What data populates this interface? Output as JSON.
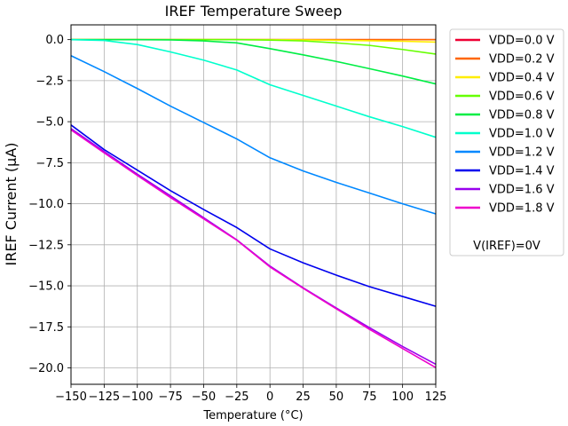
{
  "chart_data": {
    "type": "line",
    "title": "IREF Temperature Sweep",
    "xlabel": "Temperature (°C)",
    "ylabel": "IREF Current (µA)",
    "xlim": [
      -150,
      125
    ],
    "ylim": [
      -21,
      0.9
    ],
    "grid": true,
    "legend_position": "outside-upper-right",
    "legend_note": "V(IREF)=0V",
    "x_ticks": [
      -150,
      -125,
      -100,
      -75,
      -50,
      -25,
      0,
      25,
      50,
      75,
      100,
      125
    ],
    "x_tick_labels": [
      "−150",
      "−125",
      "−100",
      "−75",
      "−50",
      "−25",
      "0",
      "25",
      "50",
      "75",
      "100",
      "125"
    ],
    "y_ticks": [
      0,
      -2.5,
      -5,
      -7.5,
      -10,
      -12.5,
      -15,
      -17.5,
      -20
    ],
    "y_tick_labels": [
      "0.0",
      "−2.5",
      "−5.0",
      "−7.5",
      "−10.0",
      "−12.5",
      "−15.0",
      "−17.5",
      "−20.0"
    ],
    "x": [
      -150,
      -125,
      -100,
      -75,
      -50,
      -25,
      0,
      25,
      50,
      75,
      100,
      125
    ],
    "series": [
      {
        "name": "VDD=0.0 V",
        "color": "#ee0033",
        "values": [
          0,
          0,
          0,
          0,
          0,
          0,
          0,
          0,
          0,
          0,
          0,
          0
        ]
      },
      {
        "name": "VDD=0.2 V",
        "color": "#ff6600",
        "values": [
          0,
          0,
          0,
          0,
          0,
          0,
          0,
          0,
          0,
          0,
          0,
          0
        ]
      },
      {
        "name": "VDD=0.4 V",
        "color": "#ffee00",
        "values": [
          0,
          0,
          0,
          0,
          0,
          0,
          0,
          -0.02,
          -0.04,
          -0.07,
          -0.1,
          -0.15
        ]
      },
      {
        "name": "VDD=0.6 V",
        "color": "#66ff00",
        "values": [
          0,
          0,
          0,
          0,
          0,
          0,
          -0.03,
          -0.08,
          -0.2,
          -0.35,
          -0.6,
          -0.88
        ]
      },
      {
        "name": "VDD=0.8 V",
        "color": "#00ee44",
        "values": [
          0,
          0,
          0,
          -0.02,
          -0.08,
          -0.2,
          -0.55,
          -0.93,
          -1.33,
          -1.77,
          -2.22,
          -2.7
        ]
      },
      {
        "name": "VDD=1.0 V",
        "color": "#00ffcc",
        "values": [
          0,
          -0.05,
          -0.3,
          -0.75,
          -1.25,
          -1.85,
          -2.75,
          -3.4,
          -4.05,
          -4.7,
          -5.3,
          -5.95
        ]
      },
      {
        "name": "VDD=1.2 V",
        "color": "#0088ff",
        "values": [
          -0.98,
          -1.95,
          -2.98,
          -4.05,
          -5.05,
          -6.05,
          -7.2,
          -8.0,
          -8.7,
          -9.35,
          -10.0,
          -10.62
        ]
      },
      {
        "name": "VDD=1.4 V",
        "color": "#0000ee",
        "values": [
          -5.2,
          -6.7,
          -7.95,
          -9.2,
          -10.35,
          -11.45,
          -12.75,
          -13.6,
          -14.35,
          -15.05,
          -15.65,
          -16.25
        ]
      },
      {
        "name": "VDD=1.6 V",
        "color": "#9900ee",
        "values": [
          -5.42,
          -6.82,
          -8.2,
          -9.52,
          -10.85,
          -12.2,
          -13.8,
          -15.12,
          -16.35,
          -17.55,
          -18.7,
          -19.78
        ]
      },
      {
        "name": "VDD=1.8 V",
        "color": "#ee00cc",
        "values": [
          -5.5,
          -6.9,
          -8.28,
          -9.62,
          -10.92,
          -12.22,
          -13.85,
          -15.15,
          -16.4,
          -17.65,
          -18.82,
          -19.98
        ]
      }
    ]
  }
}
